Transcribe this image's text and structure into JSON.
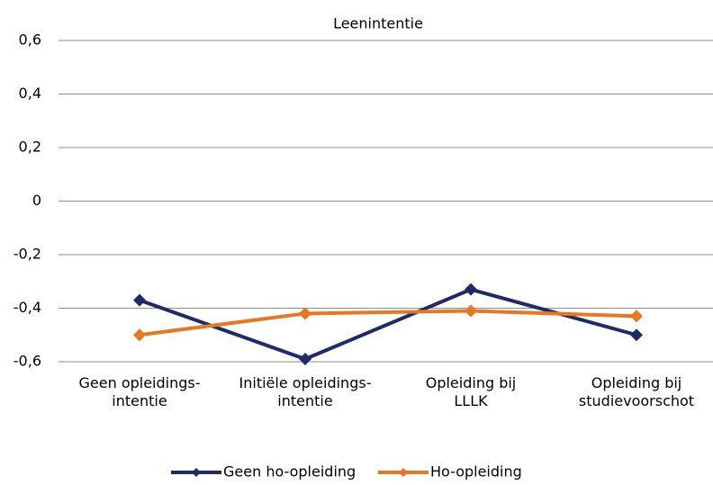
{
  "chart_data": {
    "type": "line",
    "title": "Leenintentie",
    "categories": [
      "Geen opleidings-\nintentie",
      "Initiële opleidings-\nintentie",
      "Opleiding bij\nLLLK",
      "Opleiding bij\nstudievoorschot"
    ],
    "series": [
      {
        "name": "Geen ho-opleiding",
        "color": "#1f2a66",
        "values": [
          -0.37,
          -0.59,
          -0.33,
          -0.5
        ]
      },
      {
        "name": "Ho-opleiding",
        "color": "#e87722",
        "values": [
          -0.5,
          -0.42,
          -0.41,
          -0.43
        ]
      }
    ],
    "ylim": [
      -0.6,
      0.6
    ],
    "yticks": [
      {
        "value": -0.6,
        "label": "-0,6"
      },
      {
        "value": -0.4,
        "label": "-0,4"
      },
      {
        "value": -0.2,
        "label": "-0,2"
      },
      0,
      {
        "value": 0.2,
        "label": "0,2"
      },
      {
        "value": 0.4,
        "label": "0,4"
      },
      {
        "value": 0.6,
        "label": "0,6"
      }
    ],
    "grid": true,
    "legend": "bottom"
  }
}
